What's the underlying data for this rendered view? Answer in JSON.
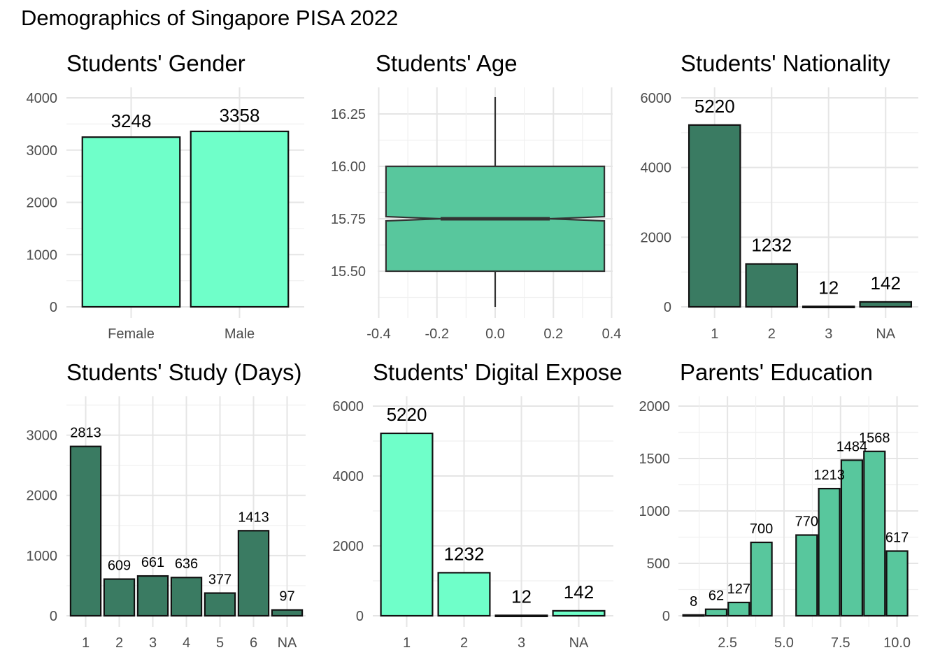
{
  "title": "Demographics of Singapore PISA 2022",
  "colors": {
    "aquamarine": "#6fffc9",
    "dark_green": "#3a7b62",
    "medium_green": "#58c79d",
    "outline": "#111111",
    "grid": "#e5e5e5"
  },
  "chart_data": [
    {
      "type": "bar",
      "title": "Students' Gender",
      "categories": [
        "Female",
        "Male"
      ],
      "values": [
        3248,
        3358
      ],
      "data_labels": [
        "3248",
        "3358"
      ],
      "ylim": [
        0,
        4000
      ],
      "yticks": [
        0,
        1000,
        2000,
        3000,
        4000
      ],
      "fill": "#6fffc9",
      "grid": true
    },
    {
      "type": "box",
      "title": "Students' Age",
      "notched": true,
      "min": 15.33,
      "q1": 15.5,
      "median": 15.75,
      "q3": 16.0,
      "max": 16.33,
      "xlim": [
        -0.4,
        0.4
      ],
      "xticks": [
        "-0.4",
        "-0.2",
        "0.0",
        "0.2",
        "0.4"
      ],
      "yticks": [
        "15.50",
        "15.75",
        "16.00",
        "16.25"
      ],
      "fill": "#58c79d",
      "grid": true
    },
    {
      "type": "bar",
      "title": "Students' Nationality",
      "categories": [
        "1",
        "2",
        "3",
        "NA"
      ],
      "values": [
        5220,
        1232,
        12,
        142
      ],
      "data_labels": [
        "5220",
        "1232",
        "12",
        "142"
      ],
      "ylim": [
        0,
        6000
      ],
      "yticks": [
        0,
        2000,
        4000,
        6000
      ],
      "fill": "#3a7b62",
      "grid": true
    },
    {
      "type": "bar",
      "title": "Students' Study (Days)",
      "categories": [
        "1",
        "2",
        "3",
        "4",
        "5",
        "6",
        "NA"
      ],
      "values": [
        2813,
        609,
        661,
        636,
        377,
        1413,
        97
      ],
      "data_labels": [
        "2813",
        "609",
        "661",
        "636",
        "377",
        "1413",
        "97"
      ],
      "ylim": [
        0,
        3000
      ],
      "yticks": [
        0,
        1000,
        2000,
        3000
      ],
      "fill": "#3a7b62",
      "grid": true
    },
    {
      "type": "bar",
      "title": "Students' Digital Expose",
      "categories": [
        "1",
        "2",
        "3",
        "NA"
      ],
      "values": [
        5220,
        1232,
        12,
        142
      ],
      "data_labels": [
        "5220",
        "1232",
        "12",
        "142"
      ],
      "ylim": [
        0,
        6000
      ],
      "yticks": [
        0,
        2000,
        4000,
        6000
      ],
      "fill": "#6fffc9",
      "grid": true
    },
    {
      "type": "bar",
      "title": "Parents' Education",
      "x": [
        1,
        2,
        3,
        4,
        6,
        7,
        8,
        9,
        10
      ],
      "values": [
        8,
        62,
        127,
        700,
        770,
        1213,
        1484,
        1568,
        617
      ],
      "data_labels": [
        "8",
        "62",
        "127",
        "700",
        "770",
        "1213",
        "1484",
        "1568",
        "617"
      ],
      "xticks": [
        "2.5",
        "5.0",
        "7.5",
        "10.0"
      ],
      "ylim": [
        0,
        2000
      ],
      "yticks": [
        0,
        500,
        1000,
        1500,
        2000
      ],
      "fill": "#58c79d",
      "grid": true
    }
  ]
}
